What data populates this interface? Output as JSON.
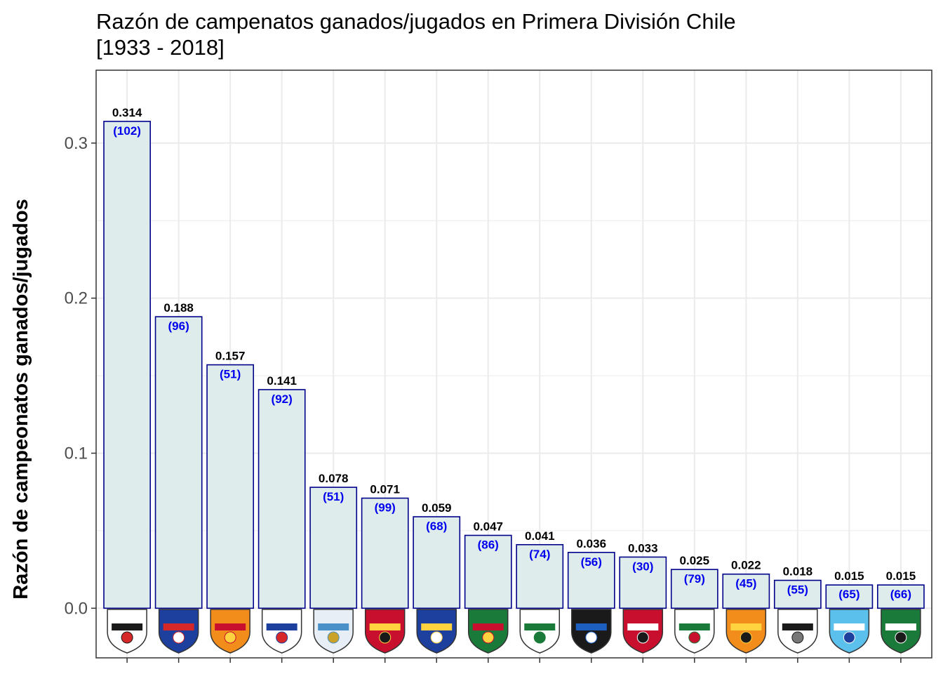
{
  "chart_data": {
    "type": "bar",
    "title": "Razón de campenatos ganados/jugados en Primera División Chile\n[1933 - 2018]",
    "xlabel": "",
    "ylabel": "Razón de campeonatos ganados/jugados",
    "ylim": [
      -0.032,
      0.347
    ],
    "yticks": [
      0.0,
      0.1,
      0.2,
      0.3
    ],
    "ytick_labels": [
      "0.0",
      "0.1",
      "0.2",
      "0.3"
    ],
    "grid": true,
    "legend": "none",
    "colors": {
      "bar_fill": "#dfecec",
      "bar_stroke": "#00008b",
      "n_label": "#0000ee",
      "value_label": "#000000",
      "grid": "#ebebeb",
      "panel_border": "#333333"
    },
    "categories": [
      "Colo-Colo",
      "Universidad de Chile",
      "Cobreloa",
      "Universidad Católica",
      "Magallanes",
      "Unión Española",
      "Everton",
      "Audax Italiano",
      "Santiago Wanderers",
      "Huachipato",
      "Unión San Felipe",
      "Palestino",
      "Cobresal",
      "Santiago Morning",
      "O'Higgins",
      "Deportes Temuco"
    ],
    "category_icons": [
      "colo-colo-crest-icon",
      "u-de-chile-crest-icon",
      "cobreloa-crest-icon",
      "cduc-crest-icon",
      "magallanes-crest-icon",
      "union-espanola-crest-icon",
      "everton-crest-icon",
      "audax-crest-icon",
      "wanderers-crest-icon",
      "huachipato-crest-icon",
      "san-felipe-crest-icon",
      "palestino-crest-icon",
      "cobresal-crest-icon",
      "santiago-morning-crest-icon",
      "ohiggins-crest-icon",
      "temuco-crest-icon"
    ],
    "values": [
      0.314,
      0.188,
      0.157,
      0.141,
      0.078,
      0.071,
      0.059,
      0.047,
      0.041,
      0.036,
      0.033,
      0.025,
      0.022,
      0.018,
      0.015,
      0.015
    ],
    "value_labels": [
      "0.314",
      "0.188",
      "0.157",
      "0.141",
      "0.078",
      "0.071",
      "0.059",
      "0.047",
      "0.041",
      "0.036",
      "0.033",
      "0.025",
      "0.022",
      "0.018",
      "0.015",
      "0.015"
    ],
    "played": [
      102,
      96,
      51,
      92,
      51,
      99,
      68,
      86,
      74,
      56,
      30,
      79,
      45,
      55,
      65,
      66
    ],
    "played_labels": [
      "(102)",
      "(96)",
      "(51)",
      "(92)",
      "(51)",
      "(99)",
      "(68)",
      "(86)",
      "(74)",
      "(56)",
      "(30)",
      "(79)",
      "(45)",
      "(55)",
      "(65)",
      "(66)"
    ]
  }
}
